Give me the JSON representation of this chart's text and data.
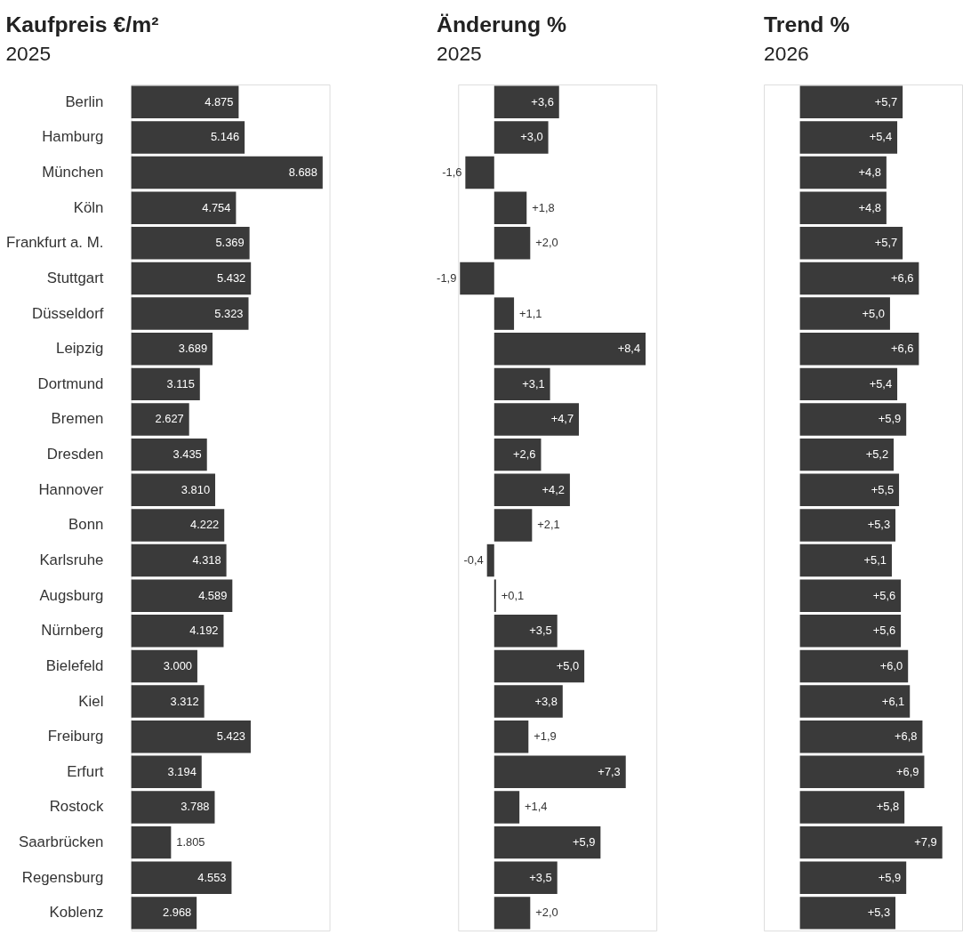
{
  "chart_data": [
    {
      "type": "bar",
      "orientation": "horizontal",
      "title": "Kaufpreis €/m²",
      "subtitle": "2025",
      "tick_labels": "y",
      "color": "#3a3a3a",
      "xlim": [
        0,
        9000
      ],
      "categories": [
        "Berlin",
        "Hamburg",
        "München",
        "Köln",
        "Frankfurt a. M.",
        "Stuttgart",
        "Düsseldorf",
        "Leipzig",
        "Dortmund",
        "Bremen",
        "Dresden",
        "Hannover",
        "Bonn",
        "Karlsruhe",
        "Augsburg",
        "Nürnberg",
        "Bielefeld",
        "Kiel",
        "Freiburg",
        "Erfurt",
        "Rostock",
        "Saarbrücken",
        "Regensburg",
        "Koblenz"
      ],
      "values": [
        4875,
        5146,
        8688,
        4754,
        5369,
        5432,
        5323,
        3689,
        3115,
        2627,
        3435,
        3810,
        4222,
        4318,
        4589,
        4192,
        3000,
        3312,
        5423,
        3194,
        3788,
        1805,
        4553,
        2968
      ],
      "value_labels": [
        "4.875",
        "5.146",
        "8.688",
        "4.754",
        "5.369",
        "5.432",
        "5.323",
        "3.689",
        "3.115",
        "2.627",
        "3.435",
        "3.810",
        "4.222",
        "4.318",
        "4.589",
        "4.192",
        "3.000",
        "3.312",
        "5.423",
        "3.194",
        "3.788",
        "1.805",
        "4.553",
        "2.968"
      ]
    },
    {
      "type": "bar",
      "orientation": "horizontal",
      "title": "Änderung %",
      "subtitle": "2025",
      "tick_labels": false,
      "color": "#3a3a3a",
      "xlim": [
        -2,
        9
      ],
      "categories": [
        null,
        null,
        null,
        null,
        null,
        null,
        null,
        null,
        null,
        null,
        null,
        null,
        null,
        null,
        null,
        null,
        null,
        null,
        null,
        null,
        null,
        null,
        null,
        null
      ],
      "values": [
        3.6,
        3.0,
        -1.6,
        1.8,
        2.0,
        -1.9,
        1.1,
        8.4,
        3.1,
        4.7,
        2.6,
        4.2,
        2.1,
        -0.4,
        0.1,
        3.5,
        5.0,
        3.8,
        1.9,
        7.3,
        1.4,
        5.9,
        3.5,
        2.0
      ],
      "value_labels": [
        "+3,6",
        "+3,0",
        "-1,6",
        "+1,8",
        "+2,0",
        "-1,9",
        "+1,1",
        "+8,4",
        "+3,1",
        "+4,7",
        "+2,6",
        "+4,2",
        "+2,1",
        "-0,4",
        "+0,1",
        "+3,5",
        "+5,0",
        "+3,8",
        "+1,9",
        "+7,3",
        "+1,4",
        "+5,9",
        "+3,5",
        "+2,0"
      ]
    },
    {
      "type": "bar",
      "orientation": "horizontal",
      "title": "Trend %",
      "subtitle": "2026",
      "tick_labels": false,
      "color": "#3a3a3a",
      "xlim": [
        -2,
        9
      ],
      "categories": [
        null,
        null,
        null,
        null,
        null,
        null,
        null,
        null,
        null,
        null,
        null,
        null,
        null,
        null,
        null,
        null,
        null,
        null,
        null,
        null,
        null,
        null,
        null,
        null
      ],
      "values": [
        5.7,
        5.4,
        4.8,
        4.8,
        5.7,
        6.6,
        5.0,
        6.6,
        5.4,
        5.9,
        5.2,
        5.5,
        5.3,
        5.1,
        5.6,
        5.6,
        6.0,
        6.1,
        6.8,
        6.9,
        5.8,
        7.9,
        5.9,
        5.3
      ],
      "value_labels": [
        "+5,7",
        "+5,4",
        "+4,8",
        "+4,8",
        "+5,7",
        "+6,6",
        "+5,0",
        "+6,6",
        "+5,4",
        "+5,9",
        "+5,2",
        "+5,5",
        "+5,3",
        "+5,1",
        "+5,6",
        "+5,6",
        "+6,0",
        "+6,1",
        "+6,8",
        "+6,9",
        "+5,8",
        "+7,9",
        "+5,9",
        "+5,3"
      ]
    }
  ]
}
